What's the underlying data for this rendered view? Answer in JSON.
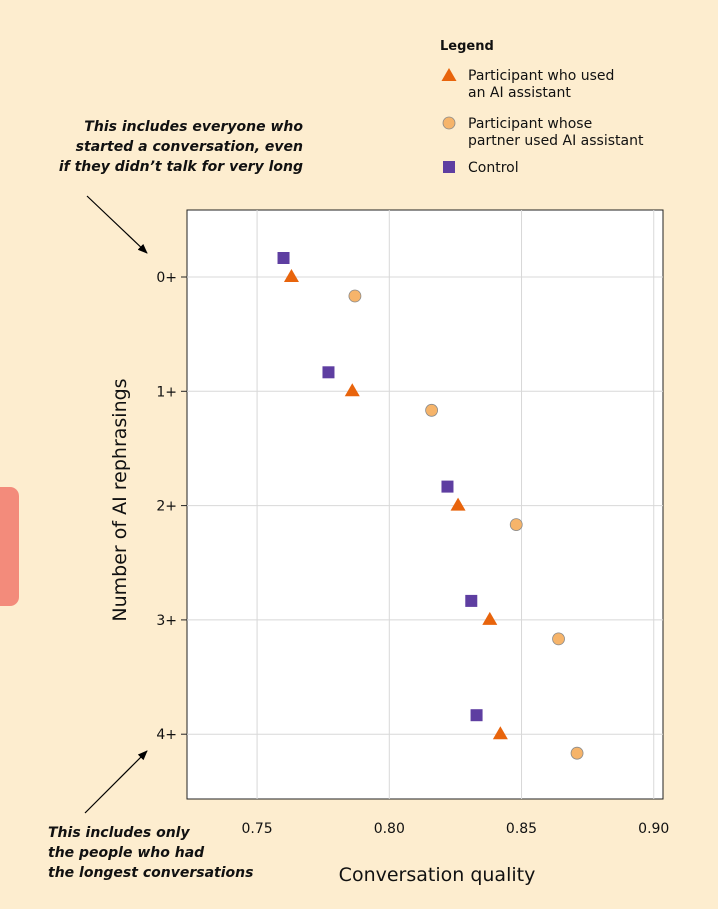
{
  "annotations": {
    "top": [
      "This includes everyone who",
      "started a conversation, even",
      "if they didn’t talk for very long"
    ],
    "bottom": [
      "This includes only",
      "the people who had",
      "the longest conversations"
    ]
  },
  "legend": {
    "title": "Legend",
    "items": [
      {
        "lines": [
          "Participant who used",
          "an AI assistant"
        ],
        "marker": "triangle",
        "color": "#e8640c"
      },
      {
        "lines": [
          "Participant whose",
          "partner used AI assistant"
        ],
        "marker": "circle",
        "color": "#f6b46a"
      },
      {
        "lines": [
          "Control"
        ],
        "marker": "square",
        "color": "#5e3ea1"
      }
    ]
  },
  "chart_data": {
    "type": "scatter",
    "xlabel": "Conversation quality",
    "ylabel": "Number of AI rephrasings",
    "xlim": [
      0.7235,
      0.9035
    ],
    "xticks": [
      "0.75",
      "0.80",
      "0.85",
      "0.90"
    ],
    "xtick_values": [
      0.75,
      0.8,
      0.85,
      0.9
    ],
    "categories": [
      "0+",
      "1+",
      "2+",
      "3+",
      "4+"
    ],
    "grid": true,
    "series": [
      {
        "name": "Control",
        "marker": "square",
        "color": "#5e3ea1",
        "values": [
          0.76,
          0.777,
          0.822,
          0.831,
          0.833
        ]
      },
      {
        "name": "Participant who used an AI assistant",
        "marker": "triangle",
        "color": "#e8640c",
        "values": [
          0.763,
          0.786,
          0.826,
          0.838,
          0.842
        ]
      },
      {
        "name": "Participant whose partner used AI assistant",
        "marker": "circle",
        "color": "#f6b46a",
        "values": [
          0.787,
          0.816,
          0.848,
          0.864,
          0.871
        ]
      }
    ]
  }
}
